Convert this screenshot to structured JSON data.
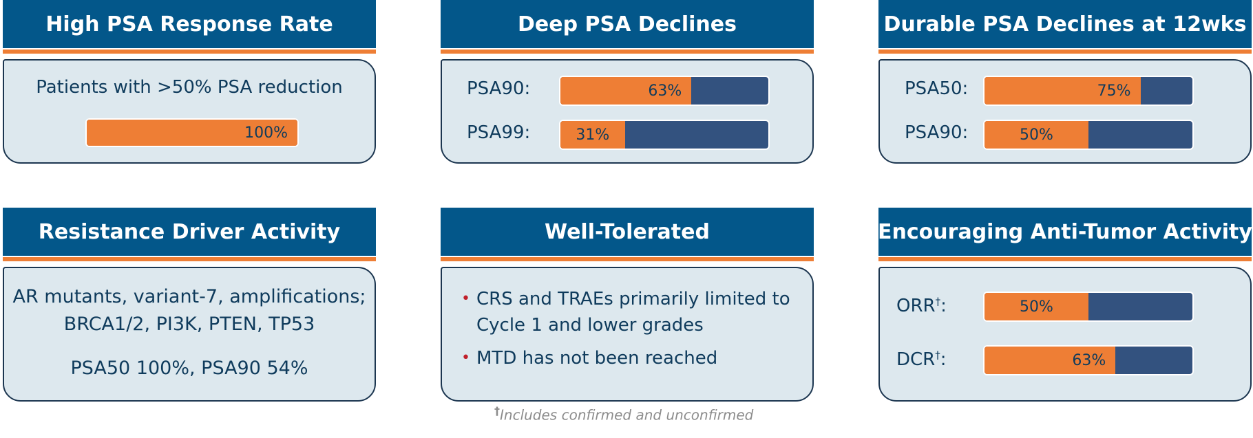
{
  "panels": {
    "response_rate": {
      "title": "High PSA Response Rate",
      "caption": "Patients with >50% PSA reduction",
      "bar": {
        "value": 100,
        "label": "100%"
      }
    },
    "deep_declines": {
      "title": "Deep PSA Declines",
      "rows": [
        {
          "label": "PSA90:",
          "value": 63,
          "value_label": "63%"
        },
        {
          "label": "PSA99:",
          "value": 31,
          "value_label": "31%"
        }
      ]
    },
    "durable_declines": {
      "title": "Durable PSA Declines at 12wks",
      "rows": [
        {
          "label": "PSA50:",
          "value": 75,
          "value_label": "75%"
        },
        {
          "label": "PSA90:",
          "value": 50,
          "value_label": "50%"
        }
      ]
    },
    "resistance": {
      "title": "Resistance Driver Activity",
      "line1": "AR mutants, variant-7, amplifications;",
      "line2": "BRCA1/2, PI3K, PTEN, TP53",
      "line3": "PSA50 100%, PSA90 54%"
    },
    "tolerated": {
      "title": "Well-Tolerated",
      "bullets": [
        {
          "line1": "CRS and TRAEs primarily limited to",
          "line2": "Cycle 1 and lower grades"
        },
        {
          "line1": "MTD has not been reached"
        }
      ]
    },
    "anti_tumor": {
      "title": "Encouraging Anti-Tumor Activity",
      "rows": [
        {
          "label": "ORR",
          "sup": "†",
          "suffix": ":",
          "value": 50,
          "value_label": "50%"
        },
        {
          "label": "DCR",
          "sup": "†",
          "suffix": ":",
          "value": 63,
          "value_label": "63%"
        }
      ]
    }
  },
  "footnote": {
    "dagger": "†",
    "text": "Includes confirmed and unconfirmed"
  },
  "colors": {
    "header": "#03578a",
    "accent_rule": "#ee7e35",
    "bar_fill": "#ee7e35",
    "bar_track": "#33527f",
    "panel_bg": "#dde8ee",
    "bullet": "#c0202a"
  }
}
